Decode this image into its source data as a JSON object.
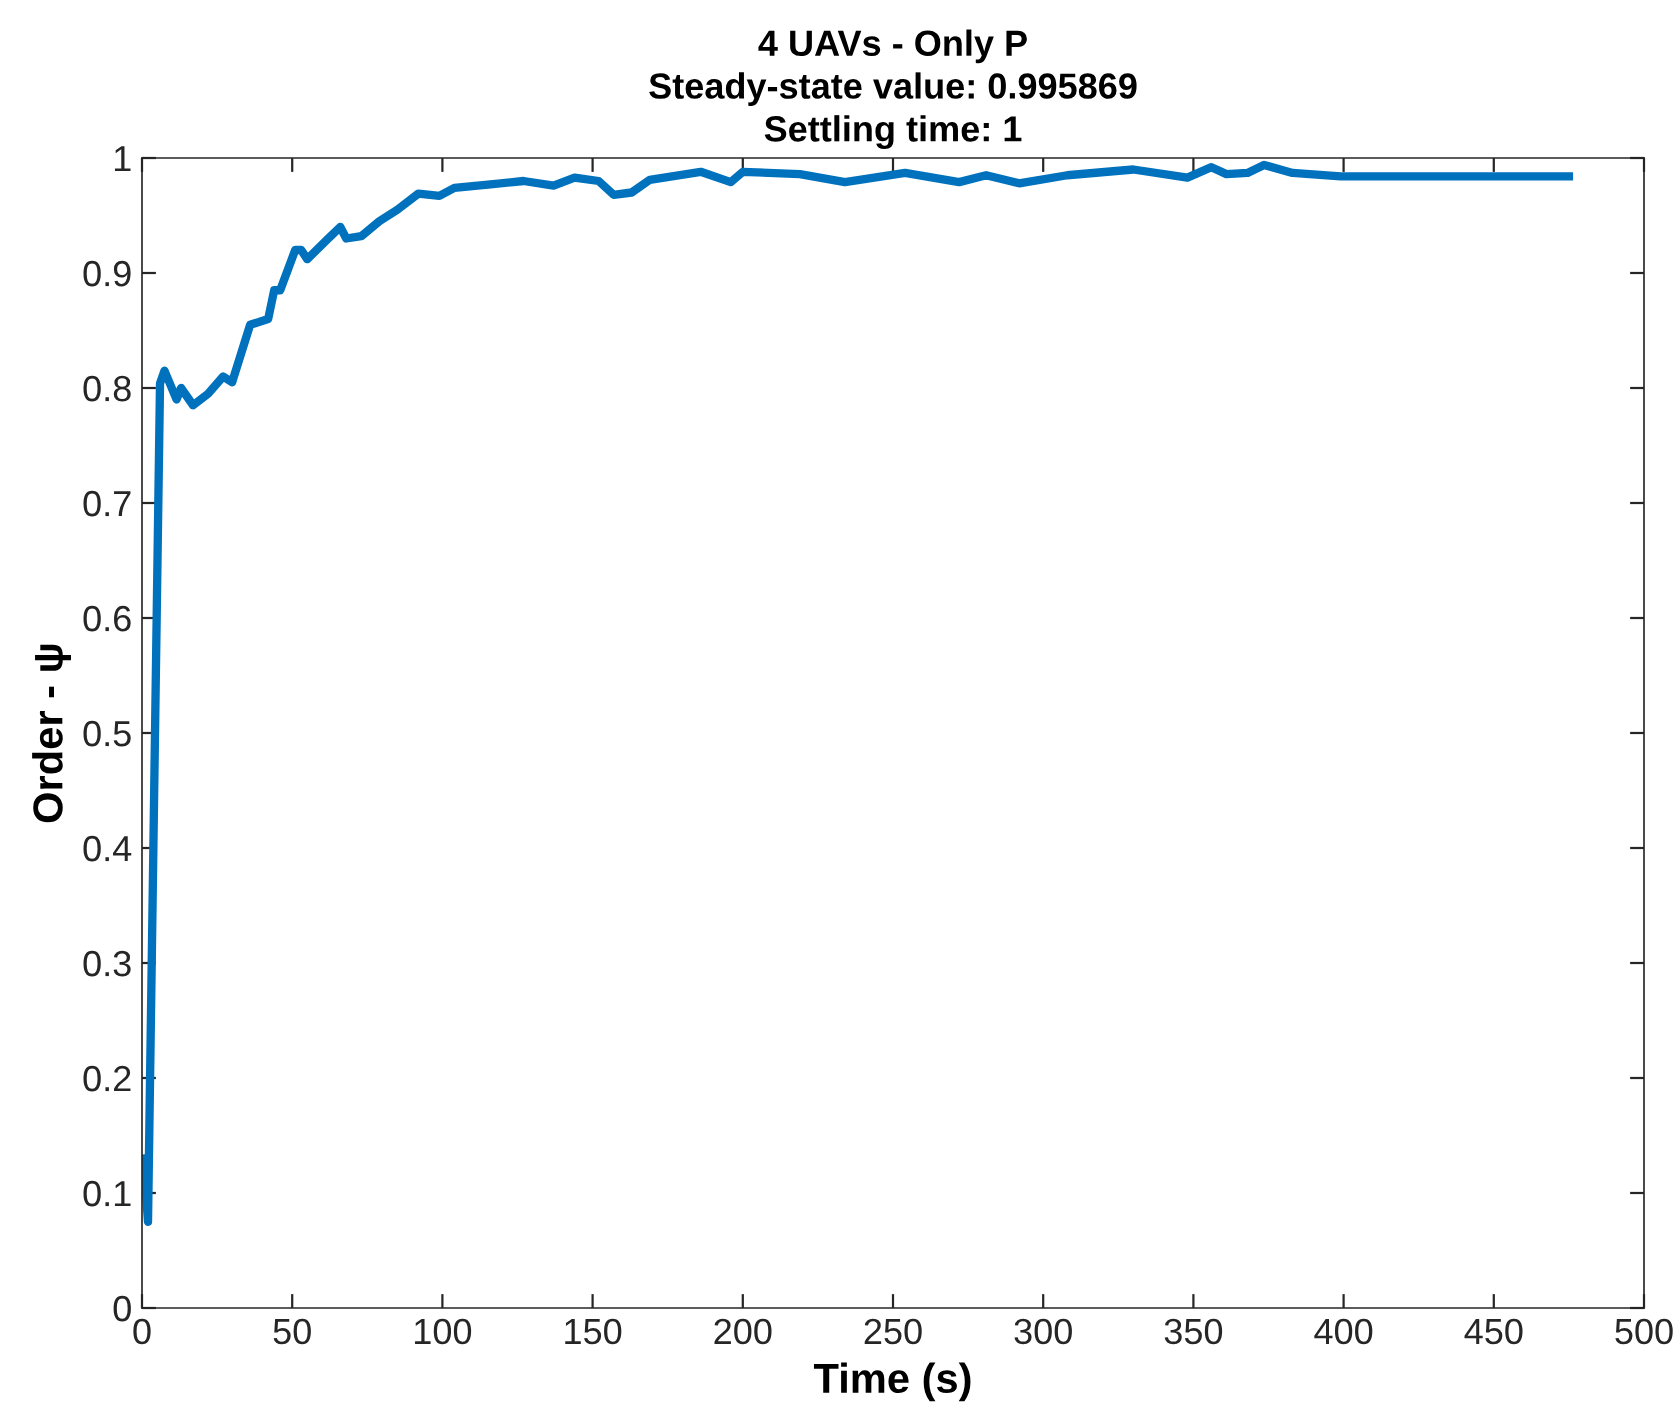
{
  "chart_data": {
    "type": "line",
    "title": "4 UAVs - Only P\nSteady-state value: 0.995869\nSettling time: 1",
    "xlabel": "Time (s)",
    "ylabel": "Order - ψ",
    "xlim": [
      0,
      500
    ],
    "ylim": [
      0,
      1
    ],
    "xticks": [
      0,
      50,
      100,
      150,
      200,
      250,
      300,
      350,
      400,
      450,
      500
    ],
    "yticks": [
      0,
      0.1,
      0.2,
      0.3,
      0.4,
      0.5,
      0.6,
      0.7,
      0.8,
      0.9,
      1
    ],
    "grid": false,
    "legend": false,
    "marker": "none",
    "line_style": "solid",
    "series": [
      {
        "color": "#0072bd",
        "x": [
          0.5,
          2,
          6,
          7.5,
          11.5,
          13,
          17,
          22,
          27,
          30,
          36,
          42,
          44,
          46,
          51,
          53,
          55,
          62,
          66,
          68,
          73,
          79,
          85,
          92,
          99,
          104,
          116,
          127,
          137,
          144,
          152,
          157,
          163,
          169,
          186,
          196,
          200,
          219,
          234,
          254,
          272,
          281,
          292,
          308,
          330,
          348,
          356,
          361,
          368,
          373.5,
          383,
          399,
          475
        ],
        "values": [
          0.13,
          0.075,
          0.804,
          0.815,
          0.79,
          0.8,
          0.785,
          0.795,
          0.81,
          0.805,
          0.855,
          0.86,
          0.885,
          0.885,
          0.92,
          0.92,
          0.912,
          0.93,
          0.94,
          0.93,
          0.932,
          0.945,
          0.955,
          0.969,
          0.967,
          0.974,
          0.977,
          0.98,
          0.976,
          0.983,
          0.98,
          0.968,
          0.97,
          0.981,
          0.988,
          0.979,
          0.988,
          0.986,
          0.979,
          0.987,
          0.979,
          0.985,
          0.978,
          0.985,
          0.99,
          0.983,
          0.992,
          0.986,
          0.987,
          0.994,
          0.987,
          0.984,
          0.984
        ]
      }
    ]
  }
}
